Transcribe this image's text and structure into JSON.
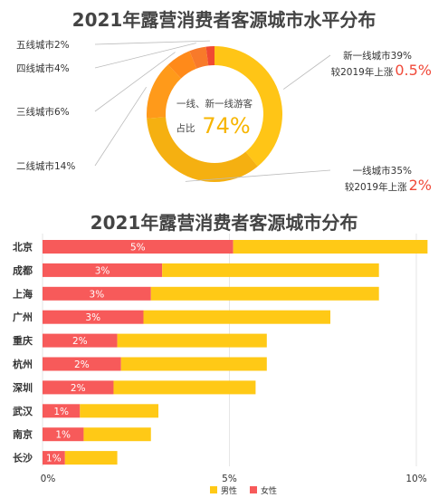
{
  "titles": {
    "donut": "2021年露营消费者客源城市水平分布",
    "bar": "2021年露营消费者客源城市分布"
  },
  "chart_data": [
    {
      "type": "pie",
      "title": "2021年露营消费者客源城市水平分布",
      "center_label_line1": "一线、新一线游客",
      "center_label_prefix": "占比",
      "center_value": "74%",
      "slices": [
        {
          "label": "新一线城市39%",
          "value": 39,
          "color": "#ffc516",
          "note_prefix": "较2019年上涨",
          "note_value": "0.5%"
        },
        {
          "label": "一线城市35%",
          "value": 35,
          "color": "#f5b011",
          "note_prefix": "较2019年上涨",
          "note_value": "2%"
        },
        {
          "label": "二线城市14%",
          "value": 14,
          "color": "#ff9a1a"
        },
        {
          "label": "三线城市6%",
          "value": 6,
          "color": "#ff8a1a"
        },
        {
          "label": "四线城市4%",
          "value": 4,
          "color": "#f87a2a"
        },
        {
          "label": "五线城市2%",
          "value": 2,
          "color": "#f04a32"
        }
      ]
    },
    {
      "type": "bar",
      "title": "2021年露营消费者客源城市分布",
      "stacked": true,
      "orientation": "horizontal",
      "categories": [
        "北京",
        "成都",
        "上海",
        "广州",
        "重庆",
        "杭州",
        "深圳",
        "武汉",
        "南京",
        "长沙"
      ],
      "series": [
        {
          "name": "女性",
          "color": "#f75a5a",
          "values": [
            5.1,
            3.2,
            2.9,
            2.7,
            2.0,
            2.1,
            1.9,
            1.0,
            1.1,
            0.6
          ],
          "labels": [
            "5%",
            "3%",
            "3%",
            "3%",
            "2%",
            "2%",
            "2%",
            "1%",
            "1%",
            "1%"
          ]
        },
        {
          "name": "男性",
          "color": "#ffc916",
          "values": [
            5.2,
            5.8,
            6.1,
            5.0,
            4.0,
            3.9,
            3.8,
            2.1,
            1.8,
            1.4
          ]
        }
      ],
      "xlim": [
        0,
        10
      ],
      "xticks": [
        "0%",
        "5%",
        "10%"
      ],
      "legend_position": "bottom",
      "legend": [
        "男性",
        "女性"
      ]
    }
  ]
}
